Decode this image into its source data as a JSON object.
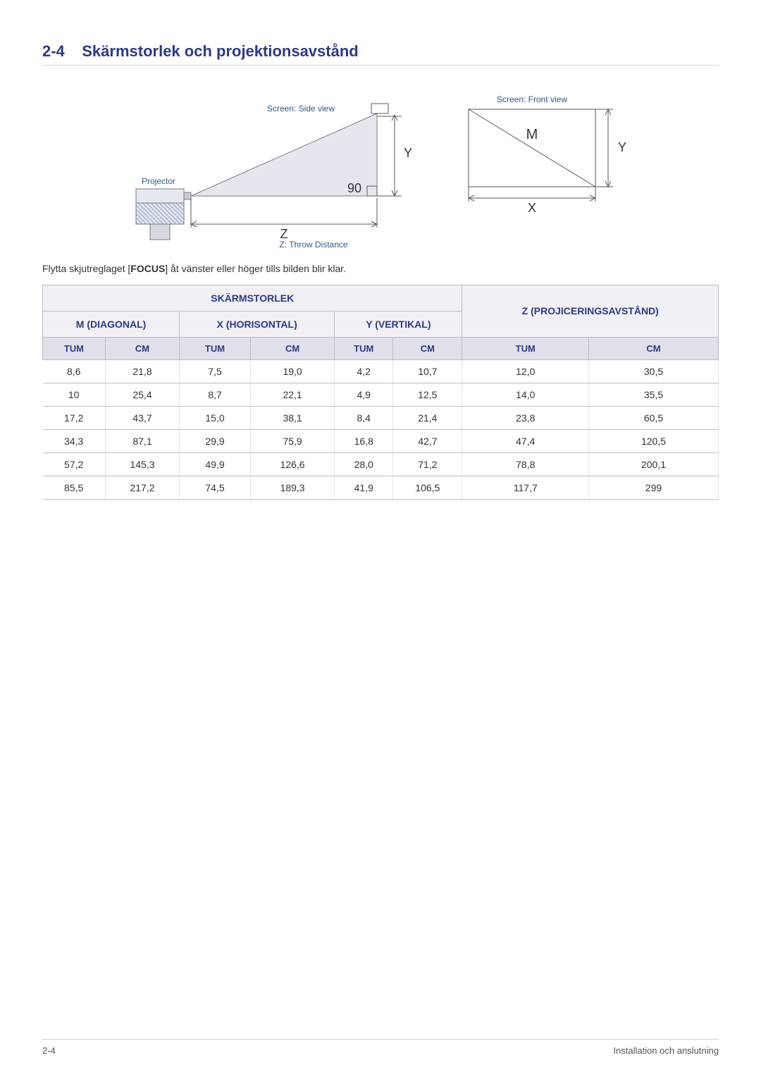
{
  "heading": {
    "num": "2-4",
    "title": "Skärmstorlek och projektionsavstånd"
  },
  "diagram": {
    "side_label": "Screen: Side view",
    "front_label": "Screen: Front view",
    "projector_label": "Projector",
    "angle_label": "90",
    "y_label": "Y",
    "x_label": "X",
    "m_label": "M",
    "z_label": "Z",
    "z_caption": "Z: Throw Distance",
    "label_color": "#2a5a8a",
    "label_fontsize": 12,
    "big_fontsize": 18,
    "line_color": "#5a5a5a",
    "fill_gray": "#d8d8e0",
    "fill_triangle": "#e6e6ee",
    "outline": "#7a7a88",
    "hatch": "#98a0b8"
  },
  "intro": {
    "pre": "Flytta skjutreglaget [",
    "bold": "FOCUS",
    "post": "] åt vänster eller höger tills bilden blir klar."
  },
  "table": {
    "header_color": "#2a3a8a",
    "top_bg": "#f0f0f5",
    "unit_bg": "#e0e0ea",
    "border": "#bcbcc8",
    "groups": {
      "screen": "SKÄRMSTORLEK",
      "z": "Z (PROJICERINGSAVSTÅND)"
    },
    "subgroups": {
      "m": "M (DIAGONAL)",
      "x": "X (HORISONTAL)",
      "y": "Y (VERTIKAL)"
    },
    "units": {
      "tum": "TUM",
      "cm": "CM"
    },
    "rows": [
      [
        "8,6",
        "21,8",
        "7,5",
        "19,0",
        "4,2",
        "10,7",
        "12,0",
        "30,5"
      ],
      [
        "10",
        "25,4",
        "8,7",
        "22,1",
        "4,9",
        "12,5",
        "14,0",
        "35,5"
      ],
      [
        "17,2",
        "43,7",
        "15,0",
        "38,1",
        "8,4",
        "21,4",
        "23,8",
        "60,5"
      ],
      [
        "34,3",
        "87,1",
        "29,9",
        "75,9",
        "16,8",
        "42,7",
        "47,4",
        "120,5"
      ],
      [
        "57,2",
        "145,3",
        "49,9",
        "126,6",
        "28,0",
        "71,2",
        "78,8",
        "200,1"
      ],
      [
        "85,5",
        "217,2",
        "74,5",
        "189,3",
        "41,9",
        "106,5",
        "117,7",
        "299"
      ]
    ]
  },
  "footer": {
    "left": "2-4",
    "right": "Installation och anslutning"
  }
}
